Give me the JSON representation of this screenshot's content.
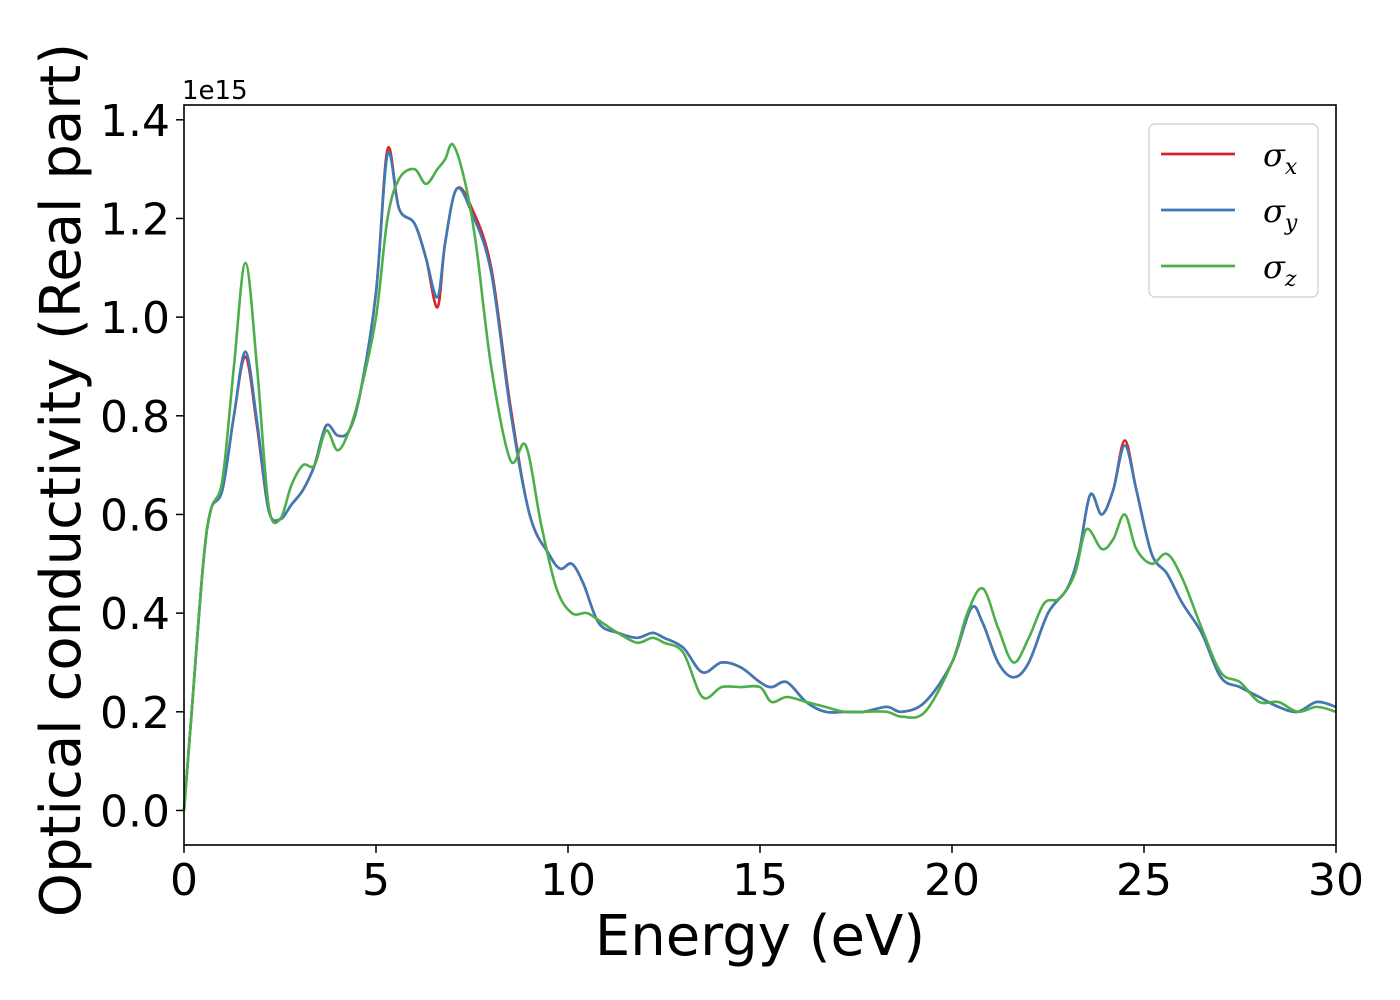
{
  "chart_data": {
    "type": "line",
    "xlabel": "Energy (eV)",
    "ylabel": "Optical conductivity (Real part)",
    "y_offset_label": "1e15",
    "xlim": [
      0,
      30
    ],
    "ylim": [
      -0.07,
      1.43
    ],
    "x_ticks": [
      0,
      5,
      10,
      15,
      20,
      25,
      30
    ],
    "x_tick_labels": [
      "0",
      "5",
      "10",
      "15",
      "20",
      "25",
      "30"
    ],
    "y_ticks": [
      0.0,
      0.2,
      0.4,
      0.6,
      0.8,
      1.0,
      1.2,
      1.4
    ],
    "y_tick_labels": [
      "0.0",
      "0.2",
      "0.4",
      "0.6",
      "0.8",
      "1.0",
      "1.2",
      "1.4"
    ],
    "grid": false,
    "legend_position": "top-right",
    "series": [
      {
        "name": "σ",
        "subscript": "x",
        "color": "#d62728",
        "points": [
          [
            0,
            0.0
          ],
          [
            0.2,
            0.2
          ],
          [
            0.5,
            0.5
          ],
          [
            0.7,
            0.61
          ],
          [
            1.0,
            0.65
          ],
          [
            1.3,
            0.8
          ],
          [
            1.6,
            0.92
          ],
          [
            1.9,
            0.78
          ],
          [
            2.2,
            0.61
          ],
          [
            2.5,
            0.59
          ],
          [
            2.8,
            0.62
          ],
          [
            3.1,
            0.65
          ],
          [
            3.4,
            0.7
          ],
          [
            3.7,
            0.78
          ],
          [
            4.0,
            0.76
          ],
          [
            4.3,
            0.77
          ],
          [
            4.6,
            0.85
          ],
          [
            5.0,
            1.05
          ],
          [
            5.3,
            1.34
          ],
          [
            5.6,
            1.22
          ],
          [
            6.0,
            1.19
          ],
          [
            6.3,
            1.12
          ],
          [
            6.6,
            1.02
          ],
          [
            6.8,
            1.15
          ],
          [
            7.1,
            1.26
          ],
          [
            7.5,
            1.22
          ],
          [
            8.0,
            1.1
          ],
          [
            8.5,
            0.82
          ],
          [
            9.0,
            0.6
          ],
          [
            9.5,
            0.52
          ],
          [
            9.8,
            0.49
          ],
          [
            10.1,
            0.5
          ],
          [
            10.4,
            0.46
          ],
          [
            10.8,
            0.38
          ],
          [
            11.3,
            0.36
          ],
          [
            11.8,
            0.35
          ],
          [
            12.2,
            0.36
          ],
          [
            12.5,
            0.35
          ],
          [
            13.0,
            0.33
          ],
          [
            13.5,
            0.28
          ],
          [
            14.0,
            0.3
          ],
          [
            14.5,
            0.29
          ],
          [
            15.0,
            0.26
          ],
          [
            15.3,
            0.25
          ],
          [
            15.7,
            0.26
          ],
          [
            16.2,
            0.22
          ],
          [
            16.7,
            0.2
          ],
          [
            17.2,
            0.2
          ],
          [
            17.7,
            0.2
          ],
          [
            18.3,
            0.21
          ],
          [
            18.7,
            0.2
          ],
          [
            19.3,
            0.22
          ],
          [
            20.0,
            0.3
          ],
          [
            20.5,
            0.41
          ],
          [
            20.8,
            0.38
          ],
          [
            21.2,
            0.3
          ],
          [
            21.6,
            0.27
          ],
          [
            22.0,
            0.3
          ],
          [
            22.5,
            0.4
          ],
          [
            23.0,
            0.45
          ],
          [
            23.3,
            0.52
          ],
          [
            23.6,
            0.64
          ],
          [
            23.9,
            0.6
          ],
          [
            24.2,
            0.65
          ],
          [
            24.5,
            0.75
          ],
          [
            24.8,
            0.65
          ],
          [
            25.2,
            0.52
          ],
          [
            25.6,
            0.48
          ],
          [
            26.0,
            0.42
          ],
          [
            26.5,
            0.36
          ],
          [
            27.0,
            0.27
          ],
          [
            27.5,
            0.25
          ],
          [
            28.0,
            0.23
          ],
          [
            28.5,
            0.21
          ],
          [
            29.0,
            0.2
          ],
          [
            29.5,
            0.22
          ],
          [
            30.0,
            0.21
          ]
        ]
      },
      {
        "name": "σ",
        "subscript": "y",
        "color": "#3d7ab8",
        "points": [
          [
            0,
            0.0
          ],
          [
            0.2,
            0.2
          ],
          [
            0.5,
            0.5
          ],
          [
            0.7,
            0.61
          ],
          [
            1.0,
            0.65
          ],
          [
            1.3,
            0.8
          ],
          [
            1.6,
            0.93
          ],
          [
            1.9,
            0.79
          ],
          [
            2.2,
            0.61
          ],
          [
            2.5,
            0.59
          ],
          [
            2.8,
            0.62
          ],
          [
            3.1,
            0.65
          ],
          [
            3.4,
            0.7
          ],
          [
            3.7,
            0.78
          ],
          [
            4.0,
            0.76
          ],
          [
            4.3,
            0.77
          ],
          [
            4.6,
            0.85
          ],
          [
            5.0,
            1.05
          ],
          [
            5.3,
            1.33
          ],
          [
            5.6,
            1.22
          ],
          [
            6.0,
            1.19
          ],
          [
            6.3,
            1.12
          ],
          [
            6.6,
            1.04
          ],
          [
            6.8,
            1.15
          ],
          [
            7.1,
            1.26
          ],
          [
            7.5,
            1.21
          ],
          [
            8.0,
            1.09
          ],
          [
            8.5,
            0.81
          ],
          [
            9.0,
            0.6
          ],
          [
            9.5,
            0.52
          ],
          [
            9.8,
            0.49
          ],
          [
            10.1,
            0.5
          ],
          [
            10.4,
            0.46
          ],
          [
            10.8,
            0.38
          ],
          [
            11.3,
            0.36
          ],
          [
            11.8,
            0.35
          ],
          [
            12.2,
            0.36
          ],
          [
            12.5,
            0.35
          ],
          [
            13.0,
            0.33
          ],
          [
            13.5,
            0.28
          ],
          [
            14.0,
            0.3
          ],
          [
            14.5,
            0.29
          ],
          [
            15.0,
            0.26
          ],
          [
            15.3,
            0.25
          ],
          [
            15.7,
            0.26
          ],
          [
            16.2,
            0.22
          ],
          [
            16.7,
            0.2
          ],
          [
            17.2,
            0.2
          ],
          [
            17.7,
            0.2
          ],
          [
            18.3,
            0.21
          ],
          [
            18.7,
            0.2
          ],
          [
            19.3,
            0.22
          ],
          [
            20.0,
            0.3
          ],
          [
            20.5,
            0.41
          ],
          [
            20.8,
            0.38
          ],
          [
            21.2,
            0.3
          ],
          [
            21.6,
            0.27
          ],
          [
            22.0,
            0.3
          ],
          [
            22.5,
            0.4
          ],
          [
            23.0,
            0.45
          ],
          [
            23.3,
            0.52
          ],
          [
            23.6,
            0.64
          ],
          [
            23.9,
            0.6
          ],
          [
            24.2,
            0.65
          ],
          [
            24.5,
            0.74
          ],
          [
            24.8,
            0.65
          ],
          [
            25.2,
            0.52
          ],
          [
            25.6,
            0.48
          ],
          [
            26.0,
            0.42
          ],
          [
            26.5,
            0.36
          ],
          [
            27.0,
            0.27
          ],
          [
            27.5,
            0.25
          ],
          [
            28.0,
            0.23
          ],
          [
            28.5,
            0.21
          ],
          [
            29.0,
            0.2
          ],
          [
            29.5,
            0.22
          ],
          [
            30.0,
            0.21
          ]
        ]
      },
      {
        "name": "σ",
        "subscript": "z",
        "color": "#4daf4a",
        "points": [
          [
            0,
            0.0
          ],
          [
            0.2,
            0.2
          ],
          [
            0.5,
            0.5
          ],
          [
            0.7,
            0.61
          ],
          [
            1.0,
            0.67
          ],
          [
            1.3,
            0.9
          ],
          [
            1.6,
            1.11
          ],
          [
            1.9,
            0.9
          ],
          [
            2.2,
            0.62
          ],
          [
            2.5,
            0.59
          ],
          [
            2.8,
            0.66
          ],
          [
            3.1,
            0.7
          ],
          [
            3.4,
            0.7
          ],
          [
            3.7,
            0.77
          ],
          [
            4.0,
            0.73
          ],
          [
            4.3,
            0.77
          ],
          [
            4.6,
            0.85
          ],
          [
            5.0,
            1.0
          ],
          [
            5.3,
            1.2
          ],
          [
            5.6,
            1.28
          ],
          [
            6.0,
            1.3
          ],
          [
            6.3,
            1.27
          ],
          [
            6.6,
            1.3
          ],
          [
            6.8,
            1.32
          ],
          [
            7.0,
            1.35
          ],
          [
            7.3,
            1.28
          ],
          [
            7.6,
            1.15
          ],
          [
            8.0,
            0.9
          ],
          [
            8.5,
            0.71
          ],
          [
            8.9,
            0.74
          ],
          [
            9.3,
            0.58
          ],
          [
            9.7,
            0.45
          ],
          [
            10.1,
            0.4
          ],
          [
            10.5,
            0.4
          ],
          [
            10.9,
            0.38
          ],
          [
            11.3,
            0.36
          ],
          [
            11.8,
            0.34
          ],
          [
            12.2,
            0.35
          ],
          [
            12.5,
            0.34
          ],
          [
            13.0,
            0.32
          ],
          [
            13.5,
            0.23
          ],
          [
            14.0,
            0.25
          ],
          [
            14.5,
            0.25
          ],
          [
            15.0,
            0.25
          ],
          [
            15.3,
            0.22
          ],
          [
            15.7,
            0.23
          ],
          [
            16.2,
            0.22
          ],
          [
            16.7,
            0.21
          ],
          [
            17.2,
            0.2
          ],
          [
            17.7,
            0.2
          ],
          [
            18.3,
            0.2
          ],
          [
            18.7,
            0.19
          ],
          [
            19.3,
            0.2
          ],
          [
            20.0,
            0.3
          ],
          [
            20.4,
            0.4
          ],
          [
            20.8,
            0.45
          ],
          [
            21.2,
            0.37
          ],
          [
            21.6,
            0.3
          ],
          [
            22.0,
            0.35
          ],
          [
            22.4,
            0.42
          ],
          [
            22.8,
            0.43
          ],
          [
            23.2,
            0.48
          ],
          [
            23.5,
            0.57
          ],
          [
            23.9,
            0.53
          ],
          [
            24.2,
            0.55
          ],
          [
            24.5,
            0.6
          ],
          [
            24.8,
            0.53
          ],
          [
            25.2,
            0.5
          ],
          [
            25.6,
            0.52
          ],
          [
            26.0,
            0.47
          ],
          [
            26.5,
            0.37
          ],
          [
            27.0,
            0.28
          ],
          [
            27.5,
            0.26
          ],
          [
            28.0,
            0.22
          ],
          [
            28.5,
            0.22
          ],
          [
            29.0,
            0.2
          ],
          [
            29.5,
            0.21
          ],
          [
            30.0,
            0.2
          ]
        ]
      }
    ]
  }
}
